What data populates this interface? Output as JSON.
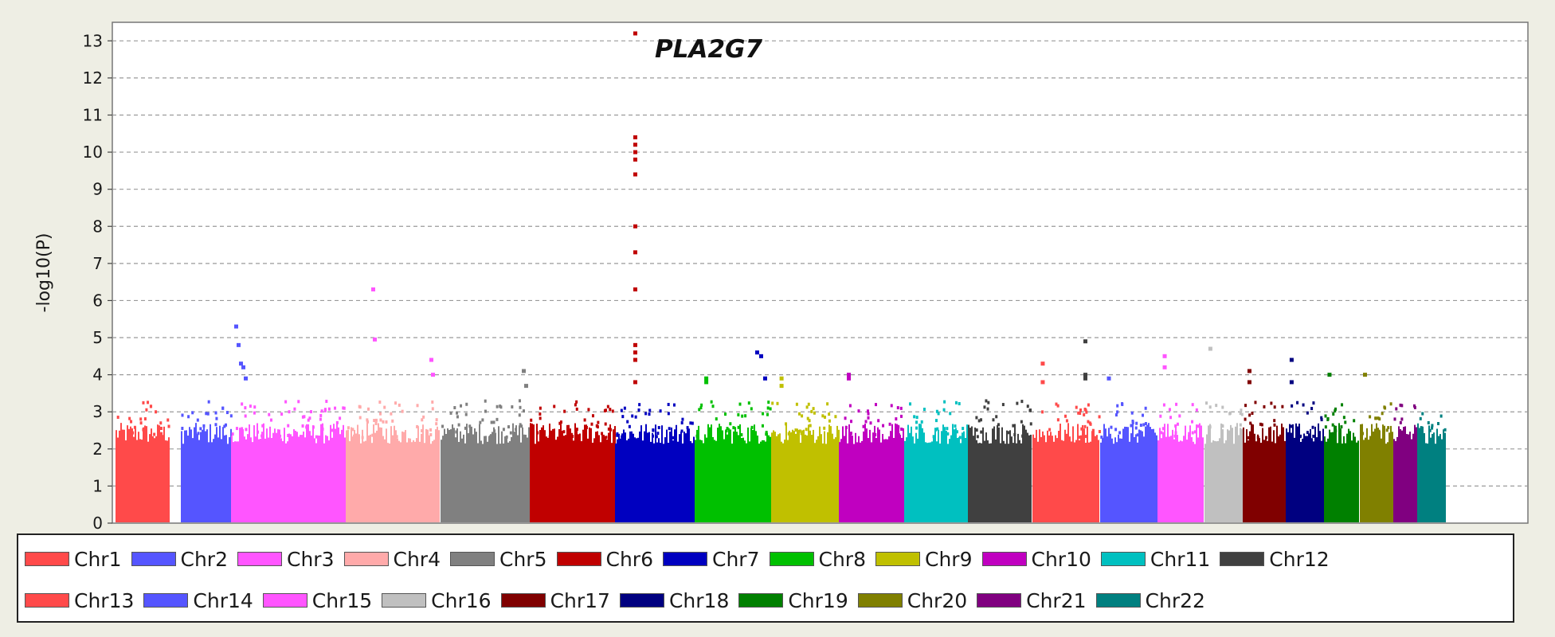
{
  "chart_data": {
    "type": "scatter",
    "title": "",
    "xlabel": "",
    "ylabel": "-log10(P)",
    "ylim": [
      0,
      13.5
    ],
    "yticks": [
      0,
      1,
      2,
      3,
      4,
      5,
      6,
      7,
      8,
      9,
      10,
      11,
      12,
      13
    ],
    "grid": true,
    "legend_position": "bottom",
    "annotations": [
      {
        "text": "PLA2G7",
        "x_chromosome": "Chr6",
        "y": 12.6
      }
    ],
    "series": [
      {
        "name": "Chr1",
        "color": "#ff4a4a",
        "peak": 3.6,
        "top_hits": []
      },
      {
        "name": "Chr2",
        "color": "#5555ff",
        "peak": 5.3,
        "top_hits": [
          5.3,
          4.8,
          4.3,
          4.2,
          3.9
        ]
      },
      {
        "name": "Chr3",
        "color": "#ff55ff",
        "peak": 6.3,
        "top_hits": [
          6.3,
          4.95,
          4.4,
          4.0
        ]
      },
      {
        "name": "Chr4",
        "color": "#ffaaaa",
        "peak": 3.6,
        "top_hits": []
      },
      {
        "name": "Chr5",
        "color": "#808080",
        "peak": 4.1,
        "top_hits": [
          4.1,
          3.7
        ]
      },
      {
        "name": "Chr6",
        "color": "#c00000",
        "peak": 13.2,
        "top_hits": [
          13.2,
          10.4,
          10.2,
          10.0,
          9.8,
          9.4,
          8.0,
          7.3,
          6.3,
          4.8,
          4.6,
          4.4,
          3.8
        ]
      },
      {
        "name": "Chr7",
        "color": "#0000c0",
        "peak": 4.6,
        "top_hits": [
          4.6,
          4.5,
          3.9
        ]
      },
      {
        "name": "Chr8",
        "color": "#00c000",
        "peak": 3.9,
        "top_hits": [
          3.9,
          3.8
        ]
      },
      {
        "name": "Chr9",
        "color": "#c0c000",
        "peak": 3.9,
        "top_hits": [
          3.9,
          3.7
        ]
      },
      {
        "name": "Chr10",
        "color": "#c000c0",
        "peak": 4.0,
        "top_hits": [
          4.0,
          3.9
        ]
      },
      {
        "name": "Chr11",
        "color": "#00c0c0",
        "peak": 3.5,
        "top_hits": []
      },
      {
        "name": "Chr12",
        "color": "#404040",
        "peak": 4.9,
        "top_hits": [
          4.9,
          4.0,
          3.9
        ]
      },
      {
        "name": "Chr13",
        "color": "#ff4a4a",
        "peak": 4.3,
        "top_hits": [
          4.3,
          3.8
        ]
      },
      {
        "name": "Chr14",
        "color": "#5555ff",
        "peak": 3.9,
        "top_hits": [
          3.9
        ]
      },
      {
        "name": "Chr15",
        "color": "#ff55ff",
        "peak": 4.5,
        "top_hits": [
          4.5,
          4.2
        ]
      },
      {
        "name": "Chr16",
        "color": "#c0c0c0",
        "peak": 4.7,
        "top_hits": [
          4.7
        ]
      },
      {
        "name": "Chr17",
        "color": "#800000",
        "peak": 4.1,
        "top_hits": [
          4.1,
          3.8
        ]
      },
      {
        "name": "Chr18",
        "color": "#000080",
        "peak": 4.4,
        "top_hits": [
          4.4,
          3.8
        ]
      },
      {
        "name": "Chr19",
        "color": "#008000",
        "peak": 4.0,
        "top_hits": [
          4.0
        ]
      },
      {
        "name": "Chr20",
        "color": "#808000",
        "peak": 4.0,
        "top_hits": [
          4.0
        ]
      },
      {
        "name": "Chr21",
        "color": "#800080",
        "peak": 3.5,
        "top_hits": []
      },
      {
        "name": "Chr22",
        "color": "#008080",
        "peak": 3.1,
        "top_hits": []
      }
    ]
  }
}
